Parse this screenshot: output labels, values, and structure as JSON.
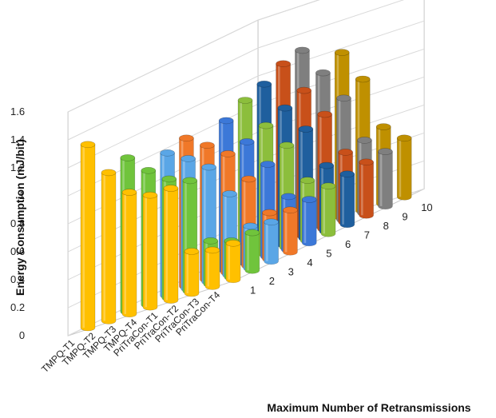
{
  "chart_data": {
    "type": "bar",
    "subtype": "3d-clustered-cylinder",
    "title": "",
    "ylabel": "Energy Consumption  (mJ/bit)",
    "xlabel": "Maximum Number of Retransmissions",
    "ylim": [
      0,
      1.6
    ],
    "yticks": [
      "0",
      "0.2",
      "0.4",
      "0.6",
      "0.8",
      "1",
      "1.2",
      "1.4",
      "1.6"
    ],
    "grid": true,
    "legend": "none",
    "categories": [
      "1",
      "2",
      "3",
      "4",
      "5",
      "6",
      "7",
      "8",
      "9",
      "10"
    ],
    "series": [
      {
        "name": "TMPQ-T1",
        "values": [
          1.31,
          null,
          null,
          null,
          null,
          null,
          null,
          null,
          null,
          null
        ]
      },
      {
        "name": "TMPQ-T2",
        "values": [
          1.06,
          1.1,
          null,
          null,
          null,
          null,
          null,
          null,
          null,
          null
        ]
      },
      {
        "name": "TMPQ-T3",
        "values": [
          0.87,
          0.96,
          1.02,
          1.06,
          null,
          null,
          null,
          null,
          null,
          null
        ]
      },
      {
        "name": "TMPQ-T4",
        "values": [
          0.8,
          0.85,
          0.93,
          0.96,
          1.07,
          1.15,
          1.2,
          1.28,
          1.31,
          null
        ]
      },
      {
        "name": "PriTraCon-T1",
        "values": [
          0.8,
          0.79,
          0.82,
          0.85,
          0.87,
          0.92,
          0.98,
          1.04,
          1.1,
          1.18
        ]
      },
      {
        "name": "PriTraCon-T2",
        "values": [
          0.3,
          0.31,
          0.58,
          0.62,
          0.66,
          0.73,
          0.78,
          0.82,
          0.87,
          0.94
        ]
      },
      {
        "name": "PriTraCon-T3",
        "values": [
          0.26,
          0.26,
          0.3,
          0.33,
          0.38,
          0.43,
          0.47,
          0.5,
          0.52,
          0.55
        ]
      },
      {
        "name": "PriTraCon-T4",
        "values": [
          0.26,
          0.27,
          0.28,
          0.3,
          0.31,
          0.34,
          0.36,
          0.38,
          0.39,
          0.42
        ]
      }
    ],
    "colors": {
      "1": "#ffc000",
      "2": "#70c43c",
      "3": "#5aa6e6",
      "4": "#f07828",
      "5": "#3c78d8",
      "6": "#8cbe3c",
      "7": "#1f5f9e",
      "8": "#c8501a",
      "9": "#7f7f7f",
      "10": "#bf9000"
    }
  }
}
